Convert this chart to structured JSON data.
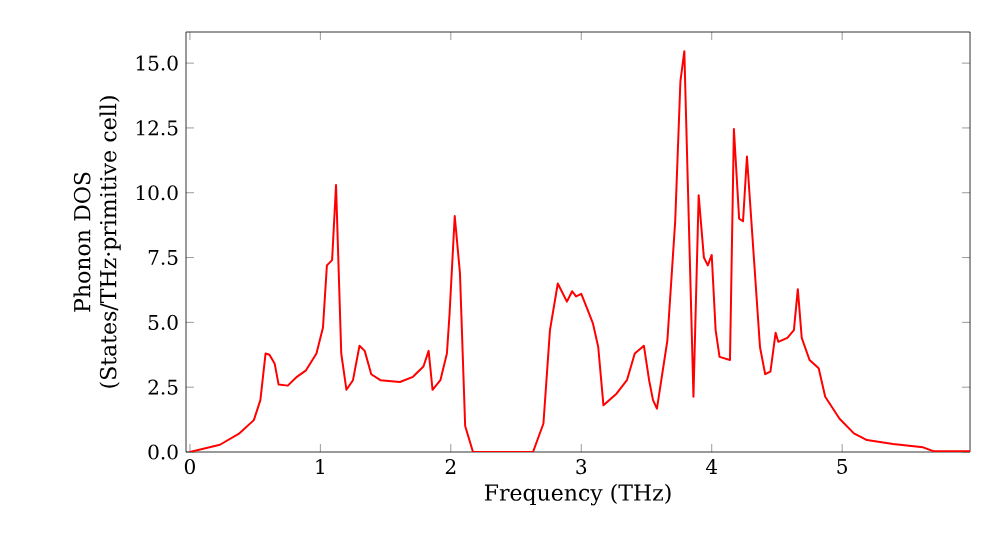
{
  "chart_data": {
    "type": "line",
    "xlabel": "Frequency (THz)",
    "ylabel": "Phonon DOS (States/THz·primitive cell)",
    "xlim": [
      -0.03,
      5.98
    ],
    "ylim": [
      0,
      16.2
    ],
    "xticks": [
      0,
      1,
      2,
      3,
      4,
      5
    ],
    "yticks": [
      {
        "value": 0,
        "label": "0.0"
      },
      2.5,
      {
        "value": 5,
        "label": "5.0"
      },
      7.5,
      {
        "value": 10,
        "label": "10.0"
      },
      12.5,
      {
        "value": 15,
        "label": "15.0"
      }
    ],
    "grid": false,
    "marker": "none",
    "line_style": "solid",
    "series": [
      {
        "color": "#ff0000",
        "x": [
          0.0,
          0.23,
          0.38,
          0.49,
          0.54,
          0.58,
          0.61,
          0.65,
          0.68,
          0.75,
          0.82,
          0.89,
          0.97,
          1.02,
          1.05,
          1.09,
          1.12,
          1.16,
          1.2,
          1.25,
          1.3,
          1.34,
          1.39,
          1.46,
          1.61,
          1.71,
          1.79,
          1.83,
          1.86,
          1.92,
          1.97,
          1.99,
          2.03,
          2.07,
          2.11,
          2.17,
          2.63,
          2.71,
          2.76,
          2.82,
          2.89,
          2.93,
          2.96,
          3.0,
          3.04,
          3.09,
          3.13,
          3.17,
          3.27,
          3.35,
          3.41,
          3.48,
          3.52,
          3.55,
          3.58,
          3.66,
          3.72,
          3.76,
          3.79,
          3.86,
          3.9,
          3.94,
          3.97,
          4.0,
          4.03,
          4.06,
          4.14,
          4.17,
          4.21,
          4.24,
          4.27,
          4.37,
          4.41,
          4.45,
          4.49,
          4.51,
          4.58,
          4.63,
          4.66,
          4.69,
          4.75,
          4.82,
          4.87,
          4.98,
          5.09,
          5.19,
          5.39,
          5.62,
          5.7,
          5.98
        ],
        "values": [
          0.0,
          0.28,
          0.72,
          1.23,
          2.0,
          3.8,
          3.75,
          3.4,
          2.6,
          2.56,
          2.9,
          3.15,
          3.8,
          4.8,
          7.2,
          7.4,
          10.3,
          3.8,
          2.4,
          2.77,
          4.1,
          3.9,
          3.0,
          2.77,
          2.7,
          2.9,
          3.3,
          3.9,
          2.4,
          2.77,
          3.8,
          5.3,
          9.1,
          6.9,
          1.0,
          0.0,
          0.0,
          1.1,
          4.7,
          6.5,
          5.8,
          6.2,
          6.0,
          6.1,
          5.6,
          4.95,
          4.05,
          1.8,
          2.25,
          2.77,
          3.8,
          4.1,
          2.77,
          2.0,
          1.67,
          4.3,
          8.9,
          14.3,
          15.46,
          2.13,
          9.9,
          7.5,
          7.2,
          7.6,
          4.7,
          3.67,
          3.55,
          12.46,
          9.0,
          8.9,
          11.4,
          4.05,
          3.0,
          3.1,
          4.6,
          4.25,
          4.4,
          4.7,
          6.28,
          4.4,
          3.55,
          3.23,
          2.13,
          1.28,
          0.72,
          0.46,
          0.31,
          0.18,
          0.03,
          0.03
        ]
      }
    ]
  }
}
